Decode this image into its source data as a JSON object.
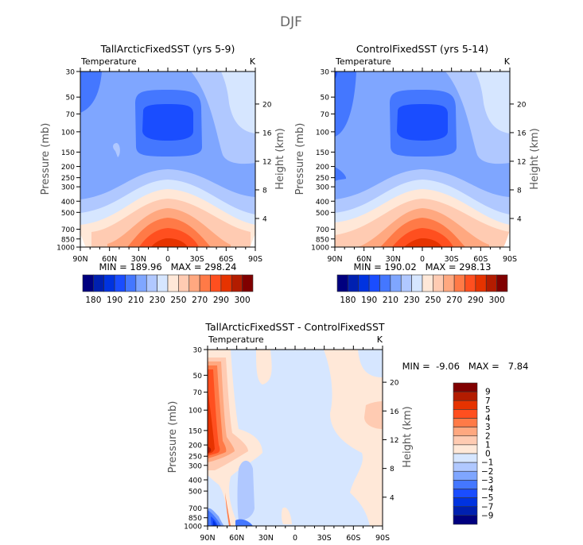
{
  "figure_title": "DJF",
  "chart_data": [
    {
      "type": "heatmap",
      "id": "panel-tall",
      "title": "TallArcticFixedSST (yrs 5-9)",
      "left_label": "Temperature",
      "right_label": "K",
      "xlabel": "",
      "ylabel": "Pressure (mb)",
      "ylabel_right": "Height (km)",
      "x_ticks": [
        "90N",
        "60N",
        "30N",
        "0",
        "30S",
        "60S",
        "90S"
      ],
      "x_range": [
        90,
        -90
      ],
      "y_ticks": [
        30,
        50,
        70,
        100,
        150,
        200,
        250,
        300,
        400,
        500,
        700,
        850,
        1000
      ],
      "y_range": [
        30,
        1000
      ],
      "y_right_ticks": [
        4,
        8,
        12,
        16,
        20
      ],
      "stats": "MIN = 189.96   MAX = 298.24",
      "min": 189.96,
      "max": 298.24,
      "colorbar": {
        "orientation": "horizontal",
        "levels": [
          180,
          185,
          190,
          200,
          210,
          220,
          230,
          240,
          250,
          260,
          270,
          280,
          290,
          295,
          300
        ],
        "labels": [
          "180",
          "190",
          "210",
          "230",
          "250",
          "270",
          "290",
          "300"
        ]
      },
      "field": "zonal-mean temperature: warm surface at equator (~298 K), cold tropical tropopause minimum (~190 K near 70-100 mb, 0°), warmer summer (south) polar stratosphere"
    },
    {
      "type": "heatmap",
      "id": "panel-control",
      "title": "ControlFixedSST (yrs 5-14)",
      "left_label": "Temperature",
      "right_label": "K",
      "xlabel": "",
      "ylabel": "Pressure (mb)",
      "ylabel_right": "Height (km)",
      "x_ticks": [
        "90N",
        "60N",
        "30N",
        "0",
        "30S",
        "60S",
        "90S"
      ],
      "x_range": [
        90,
        -90
      ],
      "y_ticks": [
        30,
        50,
        70,
        100,
        150,
        200,
        250,
        300,
        400,
        500,
        700,
        850,
        1000
      ],
      "y_range": [
        30,
        1000
      ],
      "y_right_ticks": [
        4,
        8,
        12,
        16,
        20
      ],
      "stats": "MIN = 190.02   MAX = 298.13",
      "min": 190.02,
      "max": 298.13,
      "colorbar": {
        "orientation": "horizontal",
        "levels": [
          180,
          185,
          190,
          200,
          210,
          220,
          230,
          240,
          250,
          260,
          270,
          280,
          290,
          295,
          300
        ],
        "labels": [
          "180",
          "190",
          "210",
          "230",
          "250",
          "270",
          "290",
          "300"
        ]
      },
      "field": "zonal-mean temperature: same structure as TallArctic run"
    },
    {
      "type": "heatmap",
      "id": "panel-diff",
      "title": "TallArcticFixedSST - ControlFixedSST",
      "left_label": "Temperature",
      "right_label": "K",
      "xlabel": "",
      "ylabel": "Pressure (mb)",
      "ylabel_right": "Height (km)",
      "x_ticks": [
        "90N",
        "60N",
        "30N",
        "0",
        "30S",
        "60S",
        "90S"
      ],
      "x_range": [
        90,
        -90
      ],
      "y_ticks": [
        30,
        50,
        70,
        100,
        150,
        200,
        250,
        300,
        400,
        500,
        700,
        850,
        1000
      ],
      "y_range": [
        30,
        1000
      ],
      "y_right_ticks": [
        4,
        8,
        12,
        16,
        20
      ],
      "stats": "MIN =  -9.06   MAX =   7.84",
      "min": -9.06,
      "max": 7.84,
      "colorbar": {
        "orientation": "vertical",
        "levels": [
          -9,
          -7,
          -5,
          -4,
          -3,
          -2,
          -1,
          0,
          1,
          2,
          3,
          4,
          5,
          7,
          9
        ],
        "labels": [
          "9",
          "7",
          "5",
          "4",
          "3",
          "2",
          "1",
          "0",
          "-1",
          "-2",
          "-3",
          "-4",
          "-5",
          "-7",
          "-9"
        ]
      },
      "field": "difference: strong warming (up to ~+7.8 K) near 80-90N at 150-300 mb, cooling (down to ~-9 K) near 70-85N close to surface, near-zero elsewhere with weak warming over southern high latitudes"
    }
  ],
  "palette": [
    "#00007f",
    "#0020b0",
    "#0033e0",
    "#1a4dff",
    "#4477ff",
    "#7fa6ff",
    "#b0c8ff",
    "#d6e6ff",
    "#ffe8d8",
    "#ffcbb2",
    "#ffa880",
    "#ff7a47",
    "#ff4f1f",
    "#e63300",
    "#b31c00",
    "#800000"
  ]
}
